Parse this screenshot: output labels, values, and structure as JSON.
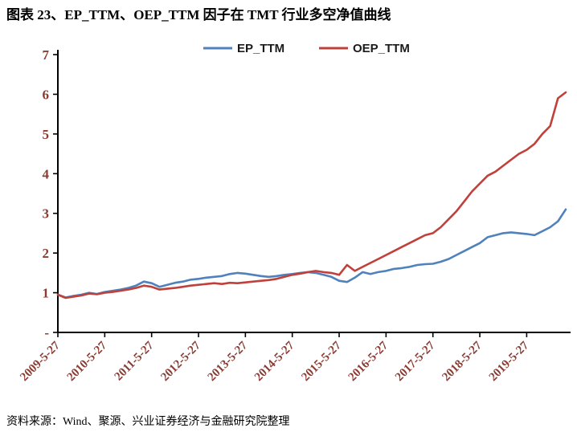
{
  "page": {
    "title": "图表 23、EP_TTM、OEP_TTM 因子在 TMT 行业多空净值曲线",
    "source_note": "资料来源：Wind、聚源、兴业证券经济与金融研究院整理"
  },
  "colors": {
    "background": "#FFFFFF",
    "title_text": "#000000",
    "axis_line": "#000000",
    "axis_label": "#8A3B32",
    "legend_text": "#1A1A1A",
    "series_blue": "#4F81BD",
    "series_red": "#C0403A"
  },
  "chart_data": {
    "type": "line",
    "title": "图表 23、EP_TTM、OEP_TTM 因子在 TMT 行业多空净值曲线",
    "xlabel": "",
    "ylabel": "",
    "grid": false,
    "legend_position": "top-center",
    "ylim": [
      0,
      7
    ],
    "y_ticks": [
      0,
      1,
      2,
      3,
      4,
      5,
      6,
      7
    ],
    "y_tick_labels": [
      "-",
      "1",
      "2",
      "3",
      "4",
      "5",
      "6",
      "7"
    ],
    "x_tick_labels": [
      "2009-5-27",
      "2010-5-27",
      "2011-5-27",
      "2012-5-27",
      "2013-5-27",
      "2014-5-27",
      "2015-5-27",
      "2016-5-27",
      "2017-5-27",
      "2018-5-27",
      "2019-5-27"
    ],
    "x_tick_indices": [
      0,
      6,
      12,
      18,
      24,
      30,
      36,
      42,
      48,
      54,
      60
    ],
    "x_step": "2 months per point, 2009-05 through 2020-03",
    "n_points": 66,
    "series": [
      {
        "name": "EP_TTM",
        "color": "#4F81BD",
        "values": [
          0.95,
          0.88,
          0.92,
          0.95,
          1.0,
          0.97,
          1.02,
          1.05,
          1.08,
          1.12,
          1.18,
          1.28,
          1.24,
          1.15,
          1.2,
          1.25,
          1.28,
          1.33,
          1.35,
          1.38,
          1.4,
          1.42,
          1.47,
          1.5,
          1.48,
          1.45,
          1.42,
          1.4,
          1.42,
          1.45,
          1.47,
          1.5,
          1.52,
          1.5,
          1.45,
          1.4,
          1.3,
          1.27,
          1.38,
          1.52,
          1.47,
          1.52,
          1.55,
          1.6,
          1.62,
          1.65,
          1.7,
          1.72,
          1.73,
          1.78,
          1.85,
          1.95,
          2.05,
          2.15,
          2.25,
          2.4,
          2.45,
          2.5,
          2.52,
          2.5,
          2.48,
          2.45,
          2.55,
          2.65,
          2.8,
          3.1
        ]
      },
      {
        "name": "OEP_TTM",
        "color": "#C0403A",
        "values": [
          0.95,
          0.87,
          0.9,
          0.93,
          0.98,
          0.96,
          1.0,
          1.02,
          1.05,
          1.08,
          1.12,
          1.18,
          1.15,
          1.08,
          1.1,
          1.12,
          1.15,
          1.18,
          1.2,
          1.22,
          1.24,
          1.22,
          1.25,
          1.24,
          1.26,
          1.28,
          1.3,
          1.32,
          1.35,
          1.4,
          1.45,
          1.48,
          1.52,
          1.55,
          1.52,
          1.5,
          1.45,
          1.7,
          1.55,
          1.65,
          1.75,
          1.85,
          1.95,
          2.05,
          2.15,
          2.25,
          2.35,
          2.45,
          2.5,
          2.65,
          2.85,
          3.05,
          3.3,
          3.55,
          3.75,
          3.95,
          4.05,
          4.2,
          4.35,
          4.5,
          4.6,
          4.75,
          5.0,
          5.2,
          5.9,
          6.05
        ]
      }
    ]
  }
}
